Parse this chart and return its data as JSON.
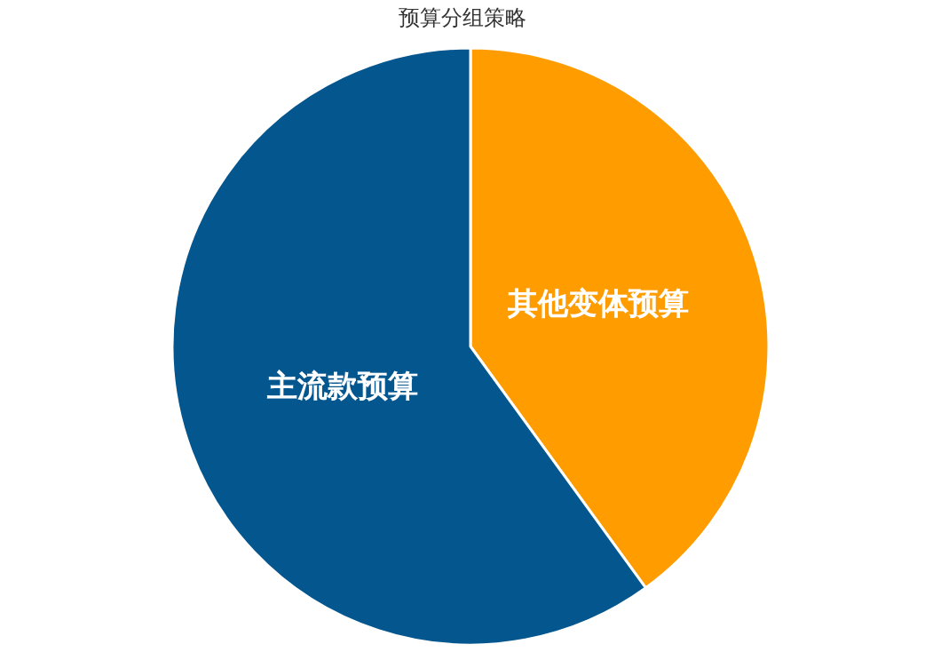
{
  "chart_data": {
    "type": "pie",
    "title": "预算分组策略",
    "categories": [
      "其他变体预算",
      "主流款预算"
    ],
    "values": [
      40,
      60
    ],
    "colors": [
      "#ff9c00",
      "#04568f"
    ],
    "legend": false
  }
}
